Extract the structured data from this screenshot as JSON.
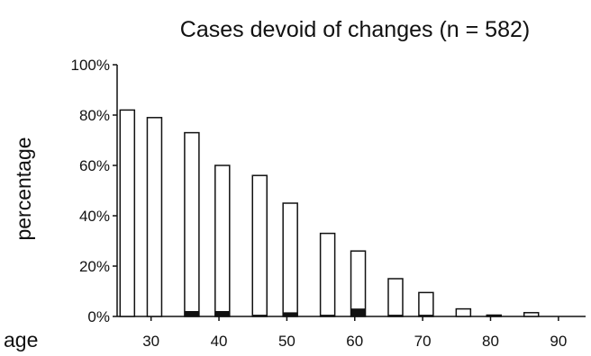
{
  "chart_data": {
    "type": "bar",
    "title": "Cases devoid of changes (n = 582)",
    "ylabel": "percentage",
    "xlabel": "age",
    "ylim": [
      0,
      100
    ],
    "y_tick_values": [
      0,
      20,
      40,
      60,
      80,
      100
    ],
    "y_tick_labels": [
      "0%",
      "20%",
      "40%",
      "60%",
      "80%",
      "100%"
    ],
    "x_tick_values": [
      30,
      40,
      50,
      60,
      70,
      80,
      90
    ],
    "x_tick_labels": [
      "30",
      "40",
      "50",
      "60",
      "70",
      "80",
      "90"
    ],
    "xlim": [
      25,
      94
    ],
    "grid": false,
    "series": [
      {
        "fill": "#ffffff",
        "x": [
          26.5,
          30.5,
          36,
          40.5,
          46,
          50.5,
          56,
          60.5,
          66,
          70.5,
          76,
          80.5,
          86
        ],
        "values": [
          82,
          79,
          73,
          60,
          56,
          45,
          33,
          26,
          15,
          9.5,
          3,
          0.5,
          1.5
        ]
      },
      {
        "fill": "#111111",
        "x": [
          26.5,
          30.5,
          36,
          40.5,
          46,
          50.5,
          56,
          60.5,
          66,
          70.5,
          76,
          80.5,
          86
        ],
        "values": [
          0,
          0,
          2,
          2,
          0.5,
          1.5,
          0.5,
          3,
          0.5,
          0.5,
          0,
          0,
          0
        ]
      }
    ],
    "colors": {
      "bar_outline": "#111111",
      "background": "#ffffff"
    }
  }
}
